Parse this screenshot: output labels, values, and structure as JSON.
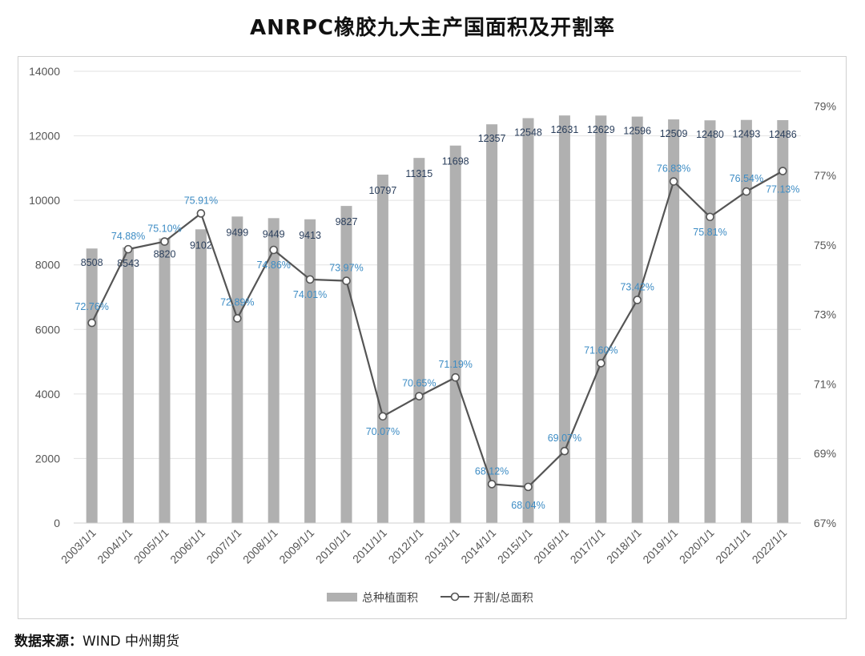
{
  "title": "ANRPC橡胶九大主产国面积及开割率",
  "source": {
    "label": "数据来源：",
    "text": "WIND  中州期货"
  },
  "colors": {
    "bar": "#b0b0b0",
    "line": "#555555",
    "marker_fill": "#ffffff",
    "point_label": "#3d8cc4",
    "bar_label": "#2b3f5c"
  },
  "chart_data": {
    "type": "bar",
    "title": "ANRPC橡胶九大主产国面积及开割率",
    "categories": [
      "2003/1/1",
      "2004/1/1",
      "2005/1/1",
      "2006/1/1",
      "2007/1/1",
      "2008/1/1",
      "2009/1/1",
      "2010/1/1",
      "2011/1/1",
      "2012/1/1",
      "2013/1/1",
      "2014/1/1",
      "2015/1/1",
      "2016/1/1",
      "2017/1/1",
      "2018/1/1",
      "2019/1/1",
      "2020/1/1",
      "2021/1/1",
      "2022/1/1"
    ],
    "series": [
      {
        "name": "总种植面积",
        "type": "bar",
        "axis": "left",
        "values": [
          8508,
          8543,
          8820,
          9102,
          9499,
          9449,
          9413,
          9827,
          10797,
          11315,
          11698,
          12357,
          12548,
          12631,
          12629,
          12596,
          12509,
          12480,
          12493,
          12486
        ]
      },
      {
        "name": "开割/总面积",
        "type": "line",
        "axis": "right",
        "values": [
          72.76,
          74.88,
          75.1,
          75.91,
          72.89,
          74.86,
          74.01,
          73.97,
          70.07,
          70.65,
          71.19,
          68.12,
          68.04,
          69.07,
          71.6,
          73.42,
          76.83,
          75.81,
          76.54,
          77.13
        ],
        "labels": [
          "72.76%",
          "74.88%",
          "75.10%",
          "75.91%",
          "72.89%",
          "74.86%",
          "74.01%",
          "73.97%",
          "70.07%",
          "70.65%",
          "71.19%",
          "68.12%",
          "68.04%",
          "69.07%",
          "71.60%",
          "73.42%",
          "76.83%",
          "75.81%",
          "76.54%",
          "77.13%"
        ]
      }
    ],
    "left_axis": {
      "min": 0,
      "max": 14000,
      "ticks": [
        "0",
        "2000",
        "4000",
        "6000",
        "8000",
        "10000",
        "12000",
        "14000"
      ]
    },
    "right_axis": {
      "min": 67,
      "max": 80,
      "ticks": [
        "67%",
        "69%",
        "71%",
        "73%",
        "75%",
        "77%",
        "79%"
      ],
      "tick_values": [
        67,
        69,
        71,
        73,
        75,
        77,
        79
      ]
    },
    "grid": true,
    "legend_position": "bottom"
  }
}
